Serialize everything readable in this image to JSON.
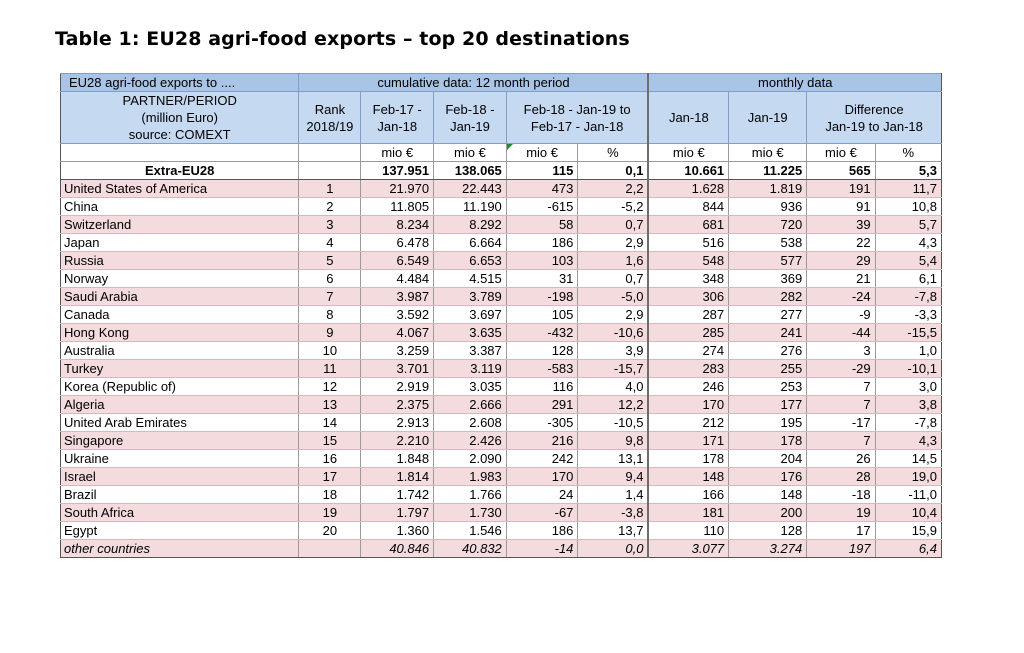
{
  "title": "Table 1: EU28 agri-food exports – top 20 destinations",
  "header": {
    "row1": {
      "col1": "EU28 agri-food exports to ....",
      "cumulative": "cumulative data: 12 month period",
      "monthly": "monthly data"
    },
    "row2": {
      "partner_line1": "PARTNER/PERIOD",
      "partner_line2": "(million Euro)",
      "partner_line3": "source: COMEXT",
      "rank_line1": "Rank",
      "rank_line2": "2018/19",
      "p1_line1": "Feb-17 -",
      "p1_line2": "Jan-18",
      "p2_line1": "Feb-18 -",
      "p2_line2": "Jan-19",
      "diff_line1": "Feb-18 - Jan-19 to",
      "diff_line2": "Feb-17 - Jan-18",
      "m1": "Jan-18",
      "m2": "Jan-19",
      "mdiff_line1": "Difference",
      "mdiff_line2": "Jan-19 to Jan-18"
    },
    "units": [
      "mio €",
      "mio €",
      "mio €",
      "%",
      "mio €",
      "mio €",
      "mio €",
      "%"
    ]
  },
  "extra": {
    "name": "Extra-EU28",
    "v": [
      "137.951",
      "138.065",
      "115",
      "0,1",
      "10.661",
      "11.225",
      "565",
      "5,3"
    ]
  },
  "rows": [
    {
      "name": "United States of America",
      "rank": "1",
      "v": [
        "21.970",
        "22.443",
        "473",
        "2,2",
        "1.628",
        "1.819",
        "191",
        "11,7"
      ]
    },
    {
      "name": "China",
      "rank": "2",
      "v": [
        "11.805",
        "11.190",
        "-615",
        "-5,2",
        "844",
        "936",
        "91",
        "10,8"
      ]
    },
    {
      "name": "Switzerland",
      "rank": "3",
      "v": [
        "8.234",
        "8.292",
        "58",
        "0,7",
        "681",
        "720",
        "39",
        "5,7"
      ]
    },
    {
      "name": "Japan",
      "rank": "4",
      "v": [
        "6.478",
        "6.664",
        "186",
        "2,9",
        "516",
        "538",
        "22",
        "4,3"
      ]
    },
    {
      "name": "Russia",
      "rank": "5",
      "v": [
        "6.549",
        "6.653",
        "103",
        "1,6",
        "548",
        "577",
        "29",
        "5,4"
      ]
    },
    {
      "name": "Norway",
      "rank": "6",
      "v": [
        "4.484",
        "4.515",
        "31",
        "0,7",
        "348",
        "369",
        "21",
        "6,1"
      ]
    },
    {
      "name": "Saudi Arabia",
      "rank": "7",
      "v": [
        "3.987",
        "3.789",
        "-198",
        "-5,0",
        "306",
        "282",
        "-24",
        "-7,8"
      ]
    },
    {
      "name": "Canada",
      "rank": "8",
      "v": [
        "3.592",
        "3.697",
        "105",
        "2,9",
        "287",
        "277",
        "-9",
        "-3,3"
      ]
    },
    {
      "name": "Hong Kong",
      "rank": "9",
      "v": [
        "4.067",
        "3.635",
        "-432",
        "-10,6",
        "285",
        "241",
        "-44",
        "-15,5"
      ]
    },
    {
      "name": "Australia",
      "rank": "10",
      "v": [
        "3.259",
        "3.387",
        "128",
        "3,9",
        "274",
        "276",
        "3",
        "1,0"
      ]
    },
    {
      "name": "Turkey",
      "rank": "11",
      "v": [
        "3.701",
        "3.119",
        "-583",
        "-15,7",
        "283",
        "255",
        "-29",
        "-10,1"
      ]
    },
    {
      "name": "Korea (Republic of)",
      "rank": "12",
      "v": [
        "2.919",
        "3.035",
        "116",
        "4,0",
        "246",
        "253",
        "7",
        "3,0"
      ]
    },
    {
      "name": "Algeria",
      "rank": "13",
      "v": [
        "2.375",
        "2.666",
        "291",
        "12,2",
        "170",
        "177",
        "7",
        "3,8"
      ]
    },
    {
      "name": "United Arab Emirates",
      "rank": "14",
      "v": [
        "2.913",
        "2.608",
        "-305",
        "-10,5",
        "212",
        "195",
        "-17",
        "-7,8"
      ]
    },
    {
      "name": "Singapore",
      "rank": "15",
      "v": [
        "2.210",
        "2.426",
        "216",
        "9,8",
        "171",
        "178",
        "7",
        "4,3"
      ]
    },
    {
      "name": "Ukraine",
      "rank": "16",
      "v": [
        "1.848",
        "2.090",
        "242",
        "13,1",
        "178",
        "204",
        "26",
        "14,5"
      ]
    },
    {
      "name": "Israel",
      "rank": "17",
      "v": [
        "1.814",
        "1.983",
        "170",
        "9,4",
        "148",
        "176",
        "28",
        "19,0"
      ]
    },
    {
      "name": "Brazil",
      "rank": "18",
      "v": [
        "1.742",
        "1.766",
        "24",
        "1,4",
        "166",
        "148",
        "-18",
        "-11,0"
      ]
    },
    {
      "name": "South Africa",
      "rank": "19",
      "v": [
        "1.797",
        "1.730",
        "-67",
        "-3,8",
        "181",
        "200",
        "19",
        "10,4"
      ]
    },
    {
      "name": "Egypt",
      "rank": "20",
      "v": [
        "1.360",
        "1.546",
        "186",
        "13,7",
        "110",
        "128",
        "17",
        "15,9"
      ]
    }
  ],
  "other": {
    "name": "other countries",
    "v": [
      "40.846",
      "40.832",
      "-14",
      "0,0",
      "3.077",
      "3.274",
      "197",
      "6,4"
    ]
  }
}
